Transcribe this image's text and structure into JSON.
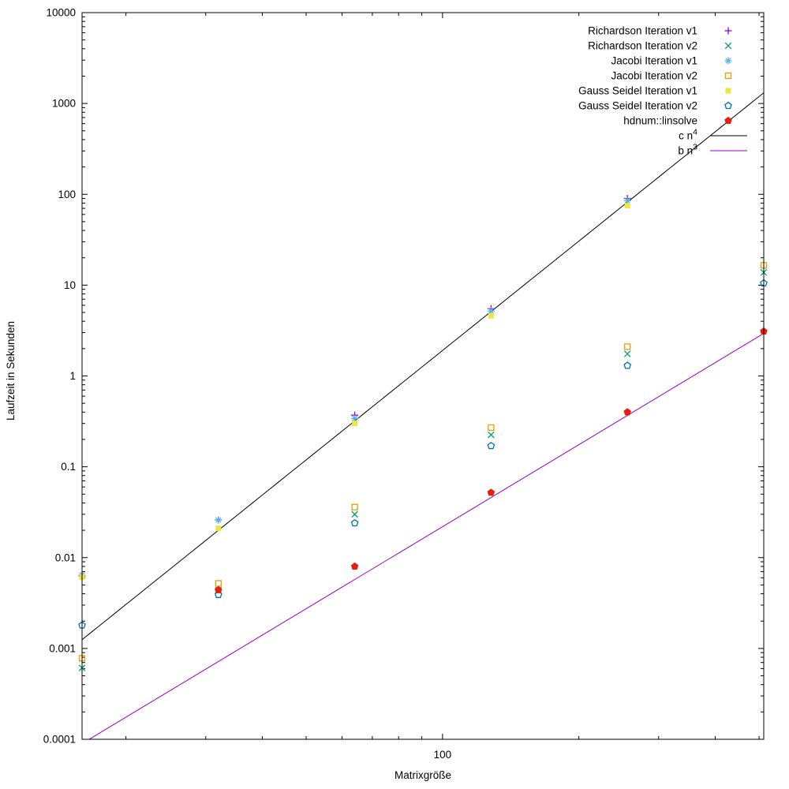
{
  "chart_data": {
    "type": "scatter",
    "title": "",
    "xlabel": "Matrixgröße",
    "ylabel": "Laufzeit in Sekunden",
    "x_scale": "log",
    "y_scale": "log",
    "xlim": [
      16,
      512
    ],
    "ylim": [
      0.0001,
      10000
    ],
    "grid": false,
    "legend_position": "top-right-inside",
    "x_major_ticks": [
      {
        "value": 100,
        "label": "100"
      }
    ],
    "x_minor_ticks": [
      20,
      30,
      40,
      50,
      60,
      70,
      80,
      90,
      200,
      300,
      400,
      500
    ],
    "y_major_ticks": [
      {
        "value": 10000,
        "label": "10000"
      },
      {
        "value": 1000,
        "label": "1000"
      },
      {
        "value": 100,
        "label": "100"
      },
      {
        "value": 10,
        "label": "10"
      },
      {
        "value": 1,
        "label": "1"
      },
      {
        "value": 0.1,
        "label": "0.1"
      },
      {
        "value": 0.01,
        "label": "0.01"
      },
      {
        "value": 0.001,
        "label": "0.001"
      },
      {
        "value": 0.0001,
        "label": "0.0001"
      }
    ],
    "series": [
      {
        "name": "Richardson Iteration v1",
        "marker": "plus",
        "color": "#9400d3",
        "x": [
          16,
          32,
          64,
          128,
          256
        ],
        "y": [
          0.0063,
          0.026,
          0.37,
          5.5,
          90
        ]
      },
      {
        "name": "Richardson Iteration v2",
        "marker": "cross",
        "color": "#009e73",
        "x": [
          16,
          32,
          64,
          128,
          256,
          512
        ],
        "y": [
          0.00061,
          0.0044,
          0.03,
          0.225,
          1.75,
          13.8
        ]
      },
      {
        "name": "Jacobi Iteration v1",
        "marker": "asterisk",
        "color": "#56b4e9",
        "x": [
          16,
          32,
          64,
          128,
          256
        ],
        "y": [
          0.0064,
          0.026,
          0.34,
          5.2,
          85
        ]
      },
      {
        "name": "Jacobi Iteration v2",
        "marker": "square-open",
        "color": "#e69f00",
        "x": [
          16,
          32,
          64,
          128,
          256,
          512
        ],
        "y": [
          0.00078,
          0.0052,
          0.036,
          0.27,
          2.1,
          16.5
        ]
      },
      {
        "name": "Gauss Seidel Iteration v1",
        "marker": "square-filled",
        "color": "#f0e442",
        "x": [
          16,
          32,
          64,
          128,
          256
        ],
        "y": [
          0.0061,
          0.021,
          0.3,
          4.6,
          75
        ]
      },
      {
        "name": "Gauss Seidel Iteration v2",
        "marker": "pentagon-open",
        "color": "#0072b2",
        "x": [
          16,
          32,
          64,
          128,
          256,
          512
        ],
        "y": [
          0.0018,
          0.0039,
          0.024,
          0.17,
          1.3,
          10.5
        ]
      },
      {
        "name": "hdnum::linsolve",
        "marker": "pentagon-filled",
        "color": "#e51e10",
        "x": [
          32,
          64,
          128,
          256,
          512
        ],
        "y": [
          0.0044,
          0.008,
          0.052,
          0.4,
          3.1
        ]
      }
    ],
    "reference_lines": [
      {
        "name": "c n",
        "sup": "4",
        "color": "#000000",
        "coeff": 1.907e-08,
        "power": 4
      },
      {
        "name": "b n",
        "sup": "3",
        "color": "#9400d3",
        "coeff": 2.19e-08,
        "power": 3
      }
    ]
  }
}
